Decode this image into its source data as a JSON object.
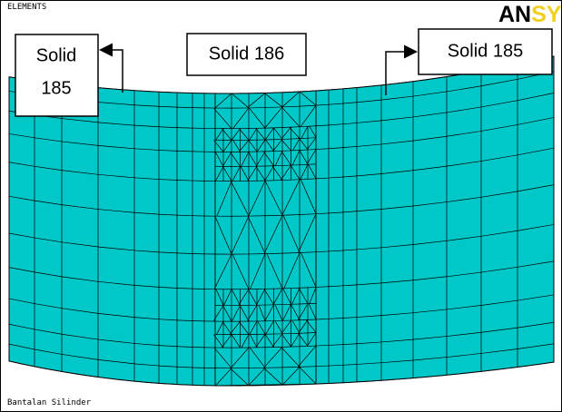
{
  "header": {
    "view_label": "ELEMENTS",
    "logo": [
      "AN",
      "SYS"
    ]
  },
  "labels": [
    {
      "lines": [
        "Solid",
        "185"
      ]
    },
    {
      "lines": [
        "Solid 186"
      ]
    },
    {
      "lines": [
        "Solid 185"
      ]
    }
  ],
  "footer": {
    "caption": "Bantalan Silinder"
  }
}
